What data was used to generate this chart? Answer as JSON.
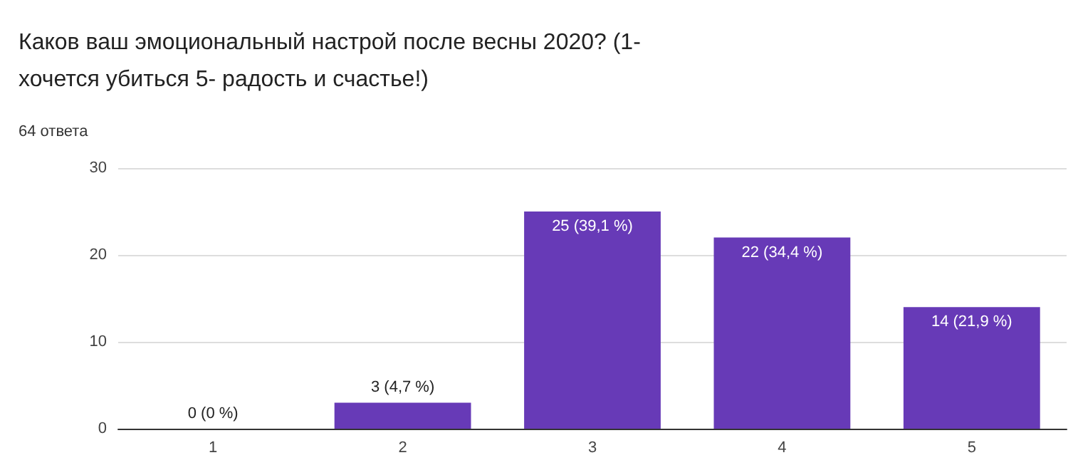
{
  "chart_data": {
    "type": "bar",
    "title": "Каков ваш эмоциональный настрой после весны 2020? (1- хочется убиться 5- радость и счастье!)",
    "subtitle": "64 ответа",
    "categories": [
      "1",
      "2",
      "3",
      "4",
      "5"
    ],
    "values": [
      0,
      3,
      25,
      22,
      14
    ],
    "value_labels": [
      "0 (0 %)",
      "3 (4,7 %)",
      "25 (39,1 %)",
      "22 (34,4 %)",
      "14 (21,9 %)"
    ],
    "color": "#673ab7",
    "ylim": [
      0,
      30
    ],
    "yticks": [
      0,
      10,
      20,
      30
    ],
    "grid": "y"
  }
}
